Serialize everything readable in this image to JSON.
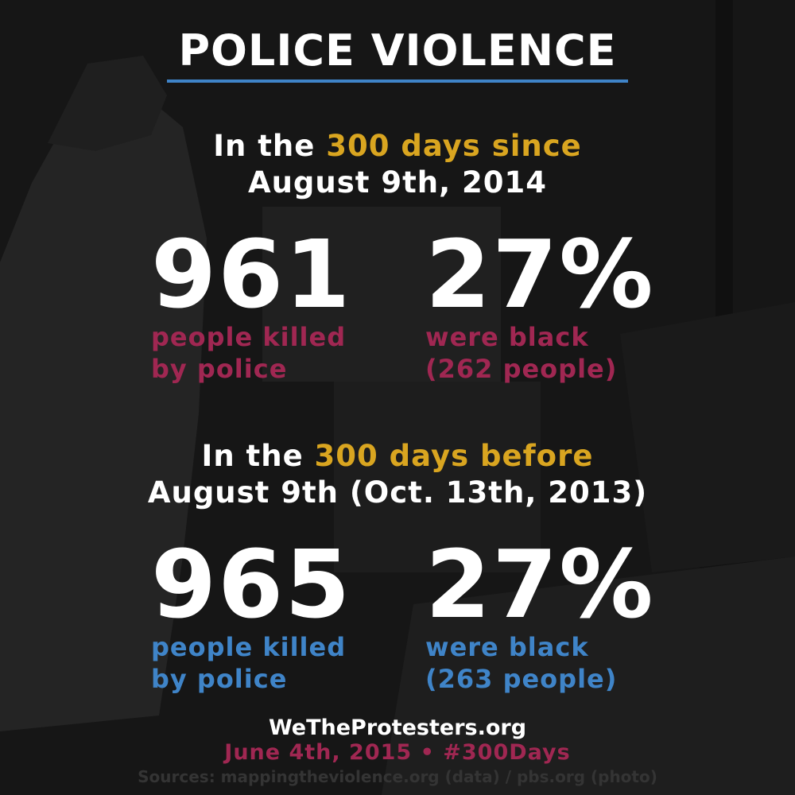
{
  "title": "POLICE VIOLENCE",
  "section1": {
    "line1_prefix": "In the ",
    "line1_highlight": "300 days since",
    "line2": "August 9th, 2014",
    "stat_left": {
      "number": "961",
      "caption_line1": "people killed",
      "caption_line2": "by police"
    },
    "stat_right": {
      "number": "27%",
      "caption_line1": "were black",
      "caption_line2": "(262 people)"
    }
  },
  "section2": {
    "line1_prefix": "In the ",
    "line1_highlight": "300 days before",
    "line2": "August 9th (Oct. 13th, 2013)",
    "stat_left": {
      "number": "965",
      "caption_line1": "people killed",
      "caption_line2": "by police"
    },
    "stat_right": {
      "number": "27%",
      "caption_line1": "were black",
      "caption_line2": "(263 people)"
    }
  },
  "footer": {
    "site": "WeTheProtesters.org",
    "date_tag": "June 4th, 2015 • #300Days",
    "sources": "Sources: mappingtheviolence.org (data) / pbs.org (photo)"
  },
  "colors": {
    "accent_gold": "#d9a520",
    "accent_red": "#a02752",
    "accent_blue": "#3f84c8",
    "background": "#141414"
  }
}
